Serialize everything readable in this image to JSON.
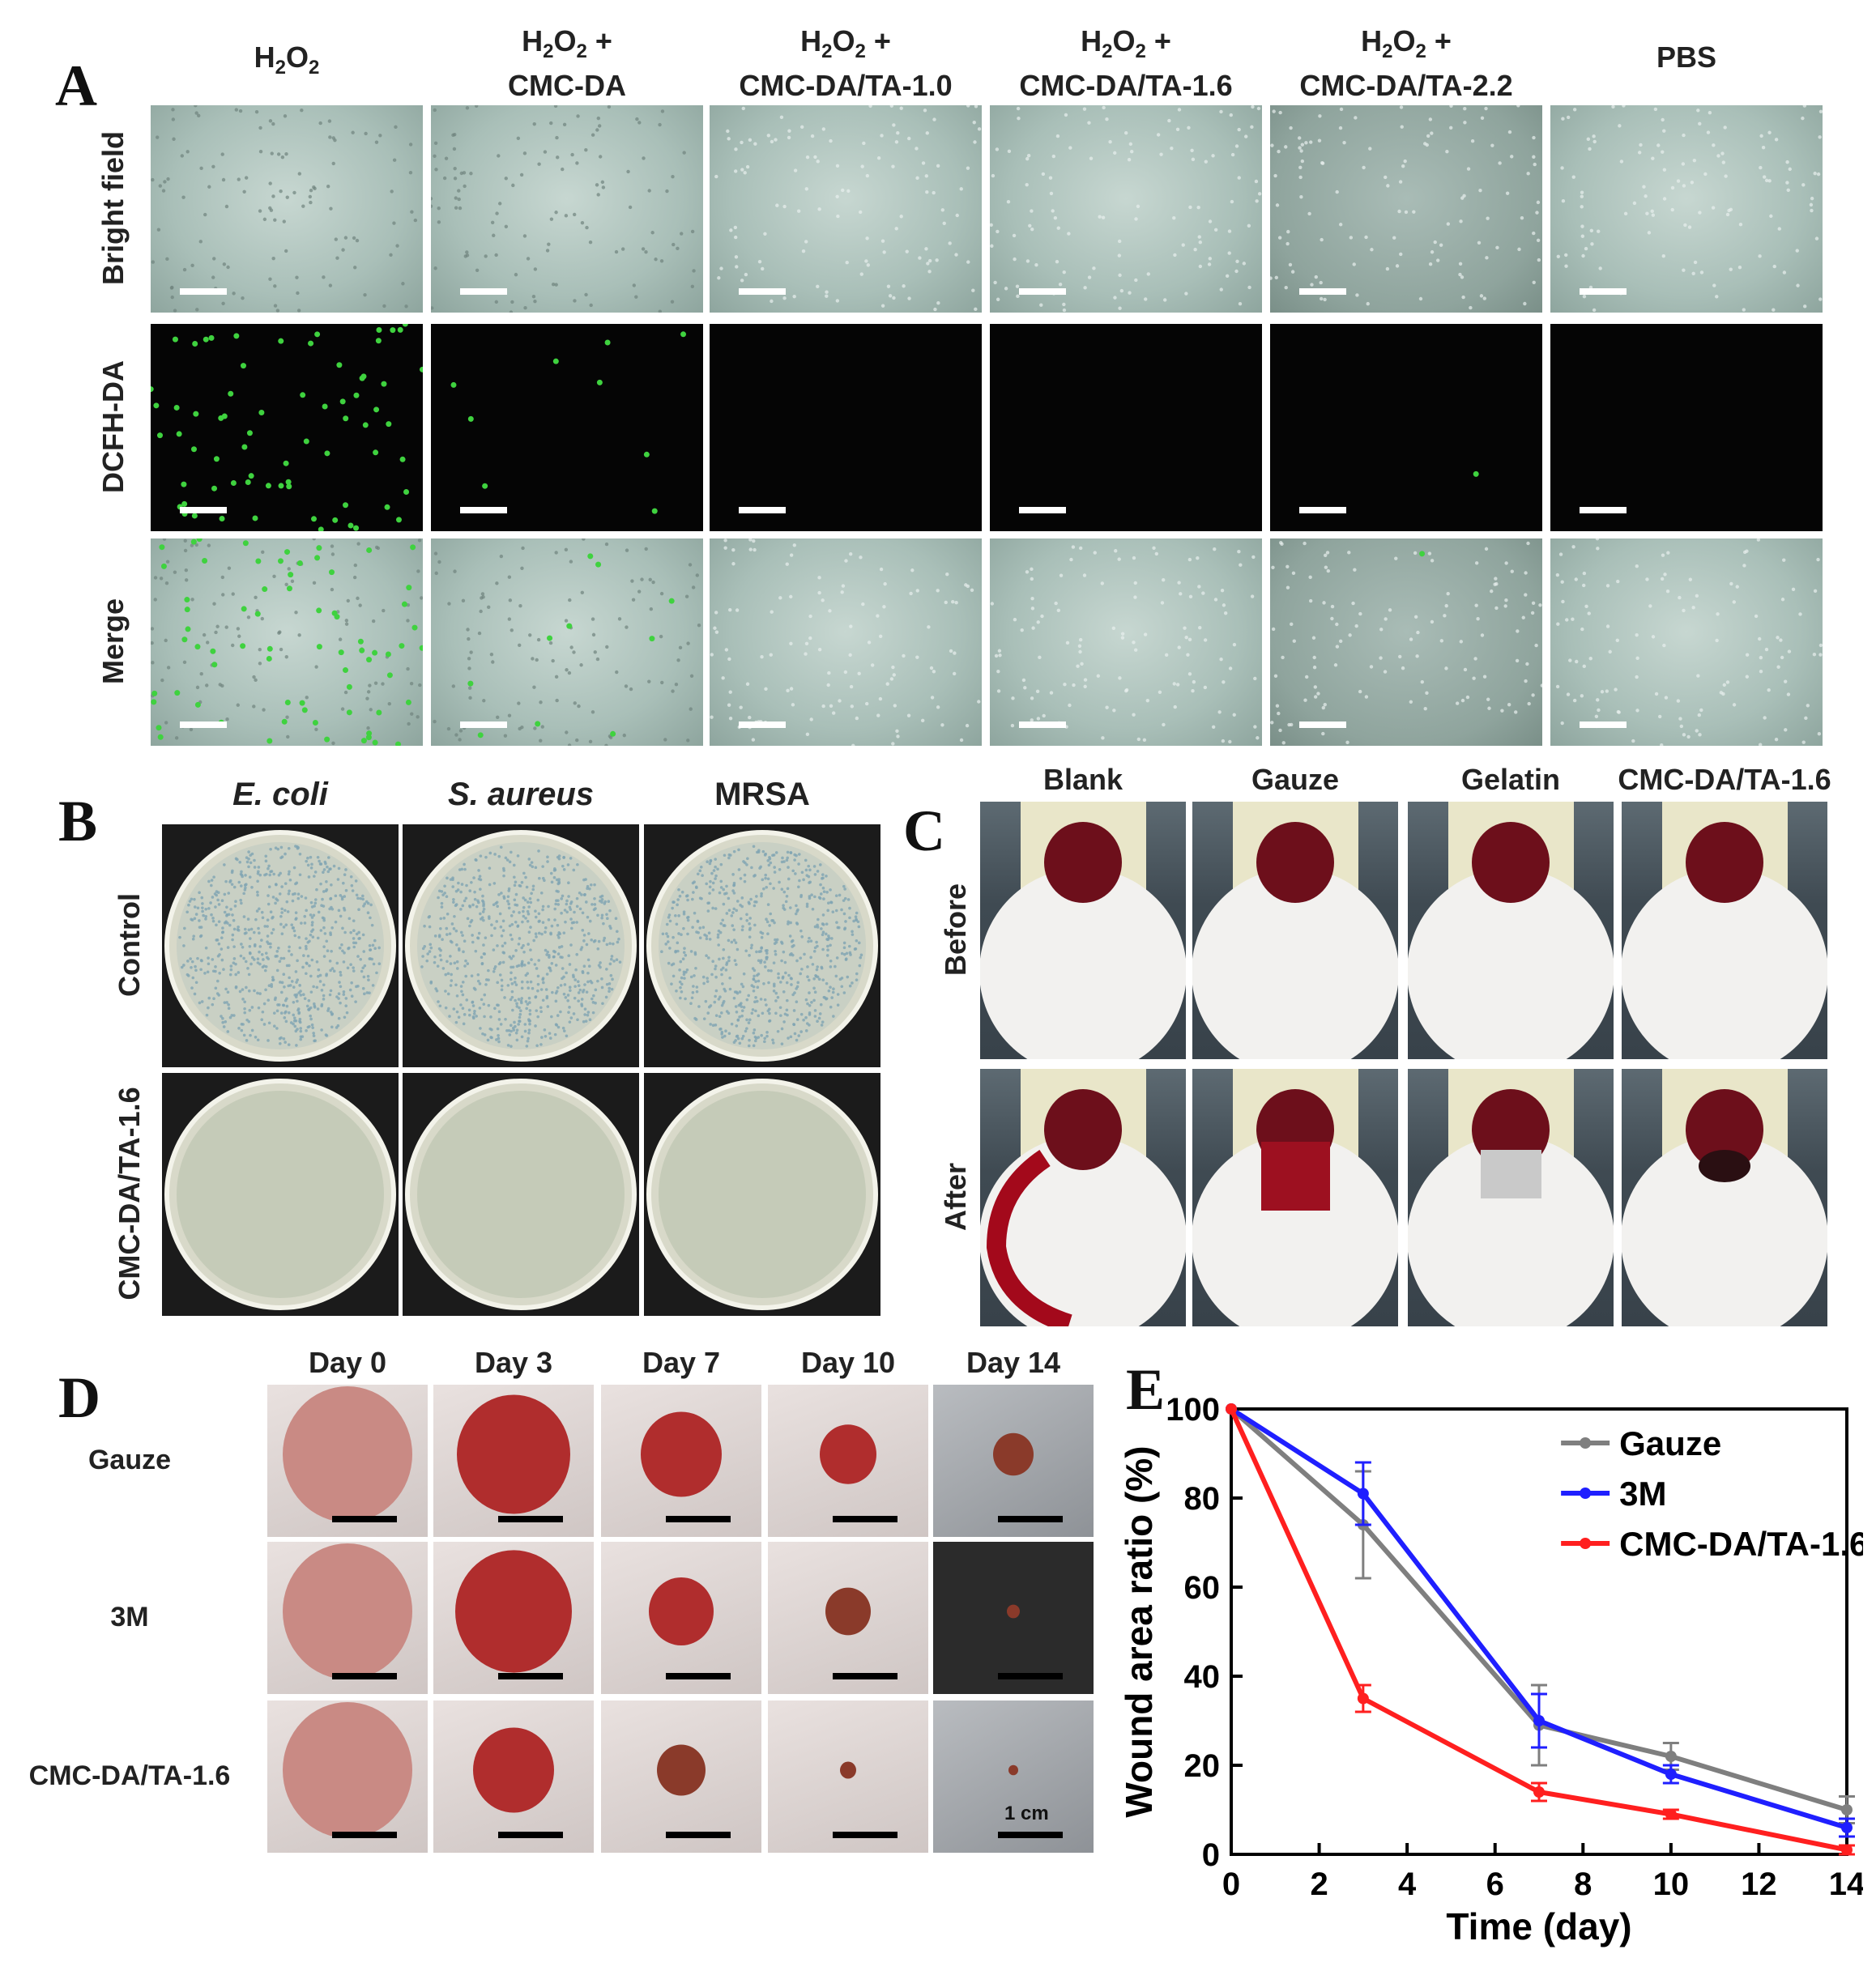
{
  "panel_a": {
    "label": "A",
    "columns": [
      {
        "line1": "H2O2",
        "line2": ""
      },
      {
        "line1": "H2O2 +",
        "line2": "CMC-DA"
      },
      {
        "line1": "H2O2 +",
        "line2": "CMC-DA/TA-1.0"
      },
      {
        "line1": "H2O2 +",
        "line2": "CMC-DA/TA-1.6"
      },
      {
        "line1": "H2O2 +",
        "line2": "CMC-DA/TA-2.2"
      },
      {
        "line1": "PBS",
        "line2": ""
      }
    ],
    "rows": [
      "Bright field",
      "DCFH-DA",
      "Merge"
    ]
  },
  "panel_b": {
    "label": "B",
    "columns": [
      "E. coli",
      "S. aureus",
      "MRSA"
    ],
    "rows": [
      "Control",
      "CMC-DA/TA-1.6"
    ]
  },
  "panel_c": {
    "label": "C",
    "columns": [
      "Blank",
      "Gauze",
      "Gelatin",
      "CMC-DA/TA-1.6"
    ],
    "rows": [
      "Before",
      "After"
    ]
  },
  "panel_d": {
    "label": "D",
    "columns": [
      "Day 0",
      "Day 3",
      "Day 7",
      "Day 10",
      "Day 14"
    ],
    "rows": [
      "Gauze",
      "3M",
      "CMC-DA/TA-1.6"
    ],
    "scale_label": "1 cm"
  },
  "panel_e": {
    "label": "E",
    "chart_data": {
      "type": "line",
      "xlabel": "Time (day)",
      "ylabel": "Wound area ratio (%)",
      "xlim": [
        0,
        14
      ],
      "ylim": [
        0,
        100
      ],
      "xticks": [
        0,
        2,
        4,
        6,
        8,
        10,
        12,
        14
      ],
      "yticks": [
        0,
        20,
        40,
        60,
        80,
        100
      ],
      "legend_position": "top-right",
      "grid": false,
      "x": [
        0,
        3,
        7,
        10,
        14
      ],
      "series": [
        {
          "name": "Gauze",
          "color": "#7f7f7f",
          "values": [
            100,
            74,
            29,
            22,
            10
          ],
          "errors": [
            0,
            12,
            9,
            3,
            3
          ]
        },
        {
          "name": "3M",
          "color": "#1f1fff",
          "values": [
            100,
            81,
            30,
            18,
            6
          ],
          "errors": [
            0,
            7,
            6,
            2,
            2
          ]
        },
        {
          "name": "CMC-DA/TA-1.6",
          "color": "#ff1f1f",
          "values": [
            100,
            35,
            14,
            9,
            1
          ],
          "errors": [
            0,
            3,
            2,
            1,
            1
          ]
        }
      ]
    }
  }
}
